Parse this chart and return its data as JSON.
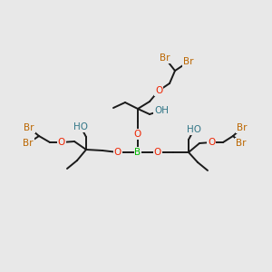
{
  "bg_color": "#e8e8e8",
  "bond_color": "#1a1a1a",
  "atom_colors": {
    "B": "#00bb00",
    "O": "#ee2200",
    "Br": "#bb6600",
    "HO": "#337788",
    "C": "#1a1a1a"
  },
  "figsize": [
    3.0,
    3.0
  ],
  "dpi": 100
}
